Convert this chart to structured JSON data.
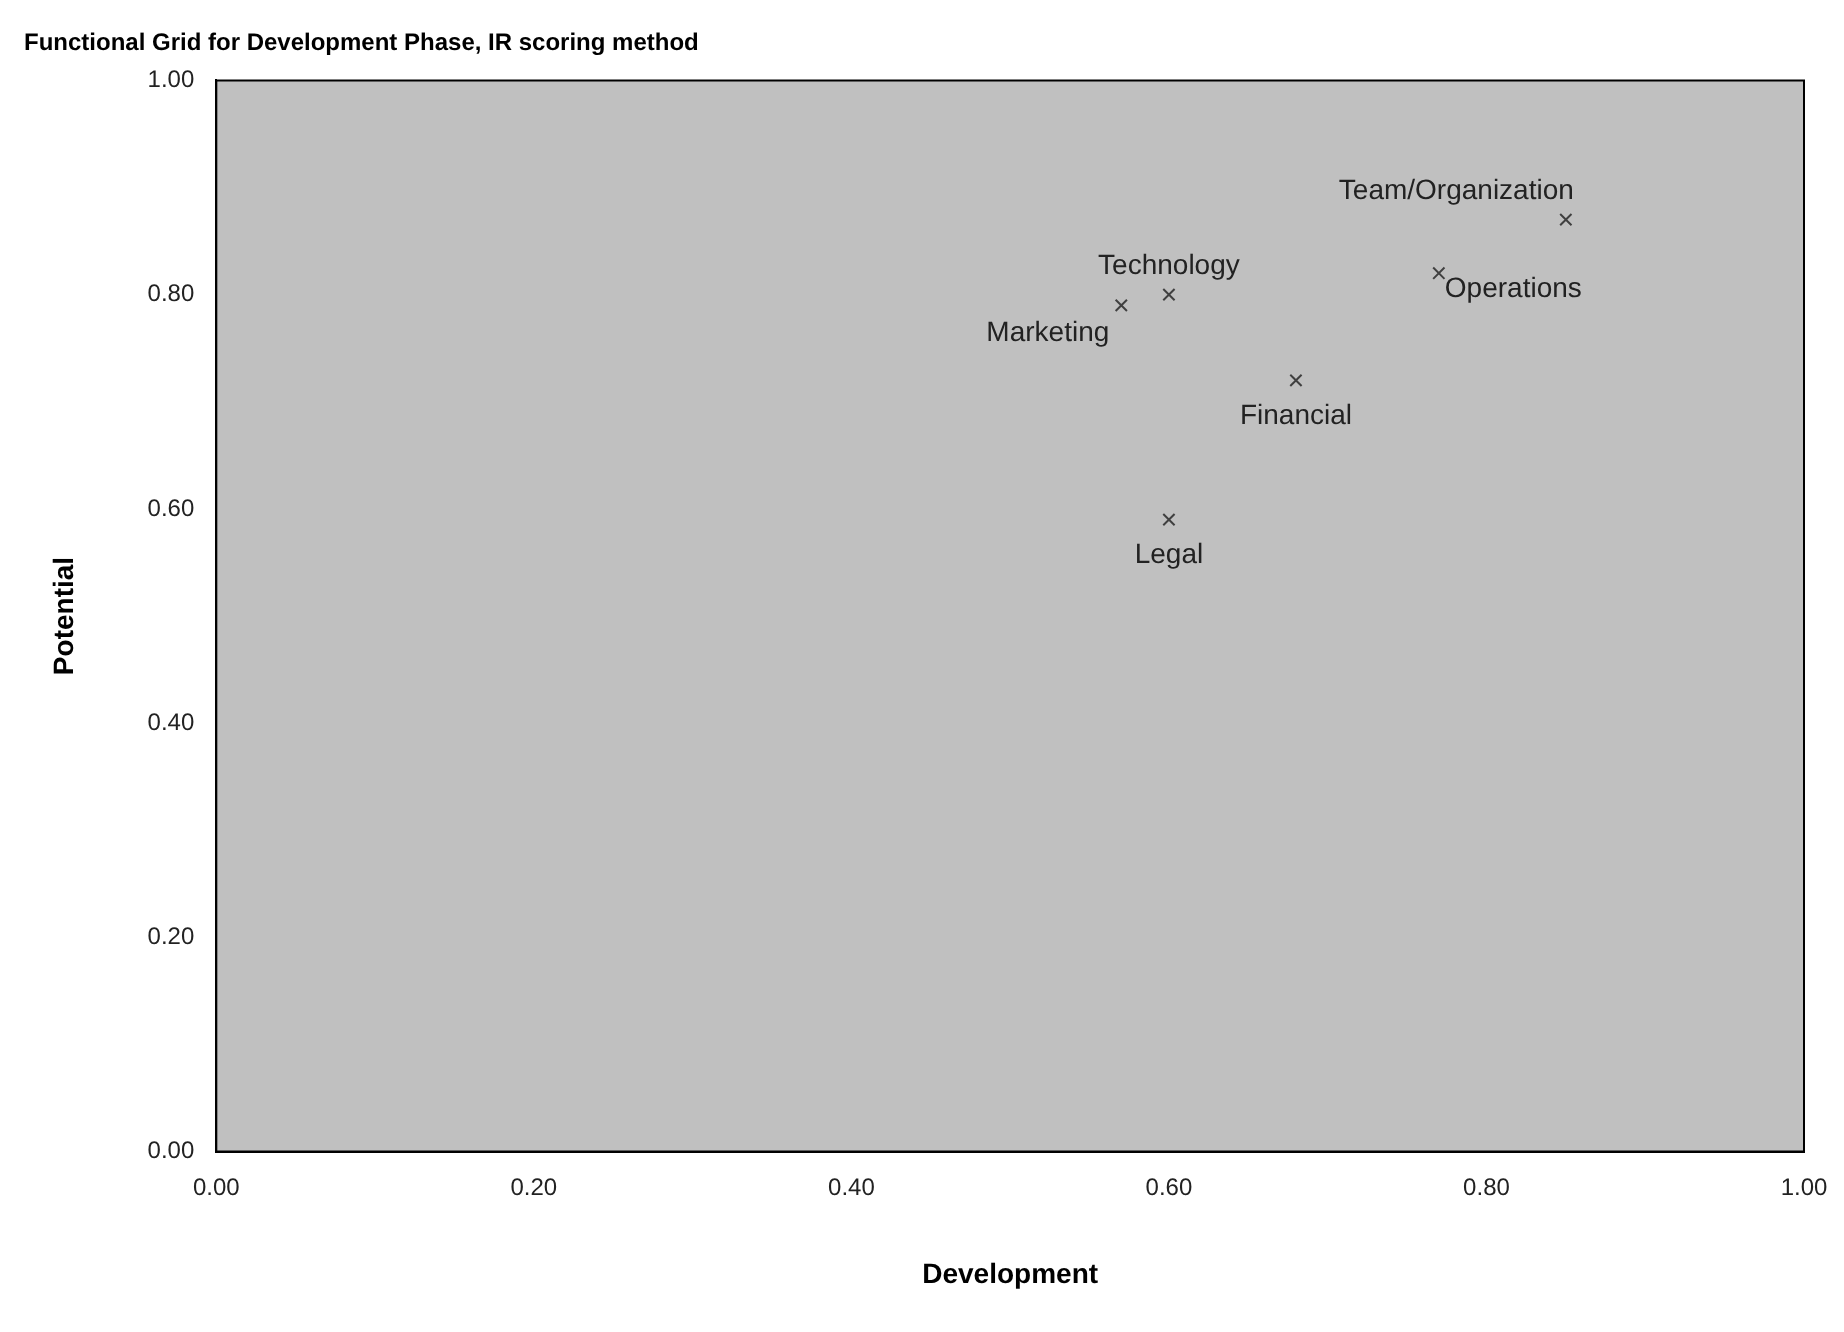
{
  "chart_data": {
    "type": "scatter",
    "title": "Functional Grid for Development Phase, IR scoring method",
    "xlabel": "Development",
    "ylabel": "Potential",
    "x": [
      0.57,
      0.6,
      0.68,
      0.77,
      0.85,
      0.6
    ],
    "values": [
      0.79,
      0.8,
      0.72,
      0.82,
      0.87,
      0.59
    ],
    "color": "#404040",
    "marker": "cross",
    "grid": false,
    "legend": false,
    "xlim": [
      0,
      1
    ],
    "xticks": [
      {
        "value": 0,
        "label": "0.00"
      },
      {
        "value": 0.2,
        "label": "0.20"
      },
      {
        "value": 0.4,
        "label": "0.40"
      },
      {
        "value": 0.6,
        "label": "0.60"
      },
      {
        "value": 0.8,
        "label": "0.80"
      },
      {
        "value": 1,
        "label": "1.00"
      }
    ],
    "ylim": [
      0,
      1
    ],
    "yticks": [
      {
        "value": 0,
        "label": "0.00"
      },
      {
        "value": 0.2,
        "label": "0.20"
      },
      {
        "value": 0.4,
        "label": "0.40"
      },
      {
        "value": 0.6,
        "label": "0.60"
      },
      {
        "value": 0.8,
        "label": "0.80"
      },
      {
        "value": 1,
        "label": "1.00"
      }
    ],
    "annotations": [
      {
        "text": "Marketing",
        "x": 0.57,
        "y": 0.79
      },
      {
        "text": "Technology",
        "x": 0.6,
        "y": 0.8
      },
      {
        "text": "Financial",
        "x": 0.68,
        "y": 0.72
      },
      {
        "text": "Operations",
        "x": 0.77,
        "y": 0.82
      },
      {
        "text": "Team/Organization",
        "x": 0.85,
        "y": 0.87
      },
      {
        "text": "Legal",
        "x": 0.6,
        "y": 0.59
      }
    ]
  }
}
